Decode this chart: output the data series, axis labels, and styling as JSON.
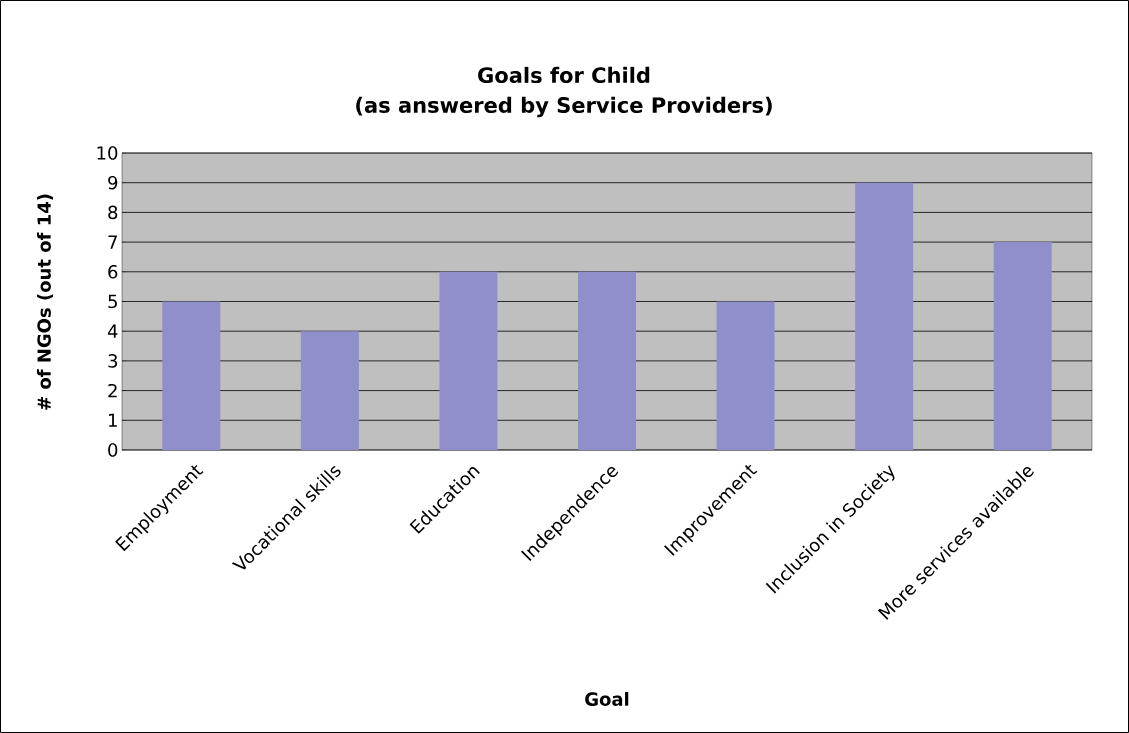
{
  "chart_data": {
    "type": "bar",
    "title": "Goals for Child",
    "subtitle": "(as answered by Service Providers)",
    "xlabel": "Goal",
    "ylabel": "# of NGOs (out of 14)",
    "categories": [
      "Employment",
      "Vocational skills",
      "Education",
      "Independence",
      "Improvement",
      "Inclusion in Society",
      "More services available"
    ],
    "values": [
      5,
      4,
      6,
      6,
      5,
      9,
      7
    ],
    "color": "#8f8fcb",
    "ylim": [
      0,
      10
    ],
    "yticks": [
      0,
      1,
      2,
      3,
      4,
      5,
      6,
      7,
      8,
      9,
      10
    ],
    "grid": "y"
  }
}
